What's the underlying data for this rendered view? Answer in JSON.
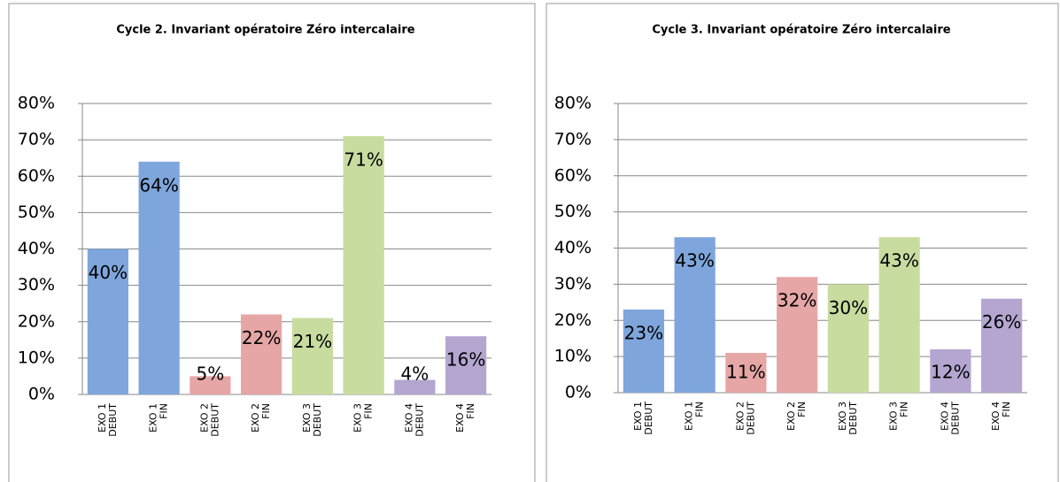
{
  "chart_data": [
    {
      "type": "bar",
      "title": "Cycle 2. Invariant opératoire Zéro intercalaire",
      "categories": [
        [
          "EXO 1",
          "DEBUT"
        ],
        [
          "EXO 1",
          "FIN"
        ],
        [
          "EXO 2",
          "DEBUT"
        ],
        [
          "EXO 2",
          "FIN"
        ],
        [
          "EXO 3",
          "DEBUT"
        ],
        [
          "EXO 3",
          "FIN"
        ],
        [
          "EXO 4",
          "DEBUT"
        ],
        [
          "EXO 4",
          "FIN"
        ]
      ],
      "values": [
        40,
        64,
        5,
        22,
        21,
        71,
        4,
        16
      ],
      "value_labels": [
        "40%",
        "64%",
        "5%",
        "22%",
        "21%",
        "71%",
        "4%",
        "16%"
      ],
      "colors": [
        "#7ea6dc",
        "#7ea6dc",
        "#e6a6a6",
        "#e6a6a6",
        "#c8dca0",
        "#c8dca0",
        "#b4a6d0",
        "#b4a6d0"
      ],
      "ylim": [
        0,
        80
      ],
      "yticks": [
        {
          "value": 0,
          "label": "0%"
        },
        {
          "value": 10,
          "label": "10%"
        },
        {
          "value": 20,
          "label": "20%"
        },
        {
          "value": 30,
          "label": "30%"
        },
        {
          "value": 40,
          "label": "40%"
        },
        {
          "value": 50,
          "label": "50%"
        },
        {
          "value": 60,
          "label": "60%"
        },
        {
          "value": 70,
          "label": "70%"
        },
        {
          "value": 80,
          "label": "80%"
        }
      ],
      "grid": true
    },
    {
      "type": "bar",
      "title": "Cycle 3. Invariant opératoire Zéro intercalaire",
      "categories": [
        [
          "EXO 1",
          "DEBUT"
        ],
        [
          "EXO 1",
          "FIN"
        ],
        [
          "EXO 2",
          "DEBUT"
        ],
        [
          "EXO 2",
          "FIN"
        ],
        [
          "EXO 3",
          "DEBUT"
        ],
        [
          "EXO 3",
          "FIN"
        ],
        [
          "EXO 4",
          "DEBUT"
        ],
        [
          "EXO 4",
          "FIN"
        ]
      ],
      "values": [
        23,
        43,
        11,
        32,
        30,
        43,
        12,
        26
      ],
      "value_labels": [
        "23%",
        "43%",
        "11%",
        "32%",
        "30%",
        "43%",
        "12%",
        "26%"
      ],
      "colors": [
        "#7ea6dc",
        "#7ea6dc",
        "#e6a6a6",
        "#e6a6a6",
        "#c8dca0",
        "#c8dca0",
        "#b4a6d0",
        "#b4a6d0"
      ],
      "ylim": [
        0,
        80
      ],
      "yticks": [
        {
          "value": 0,
          "label": "0%"
        },
        {
          "value": 10,
          "label": "10%"
        },
        {
          "value": 20,
          "label": "20%"
        },
        {
          "value": 30,
          "label": "30%"
        },
        {
          "value": 40,
          "label": "40%"
        },
        {
          "value": 50,
          "label": "50%"
        },
        {
          "value": 60,
          "label": "60%"
        },
        {
          "value": 70,
          "label": "70%"
        },
        {
          "value": 80,
          "label": "80%"
        }
      ],
      "grid": true
    }
  ]
}
